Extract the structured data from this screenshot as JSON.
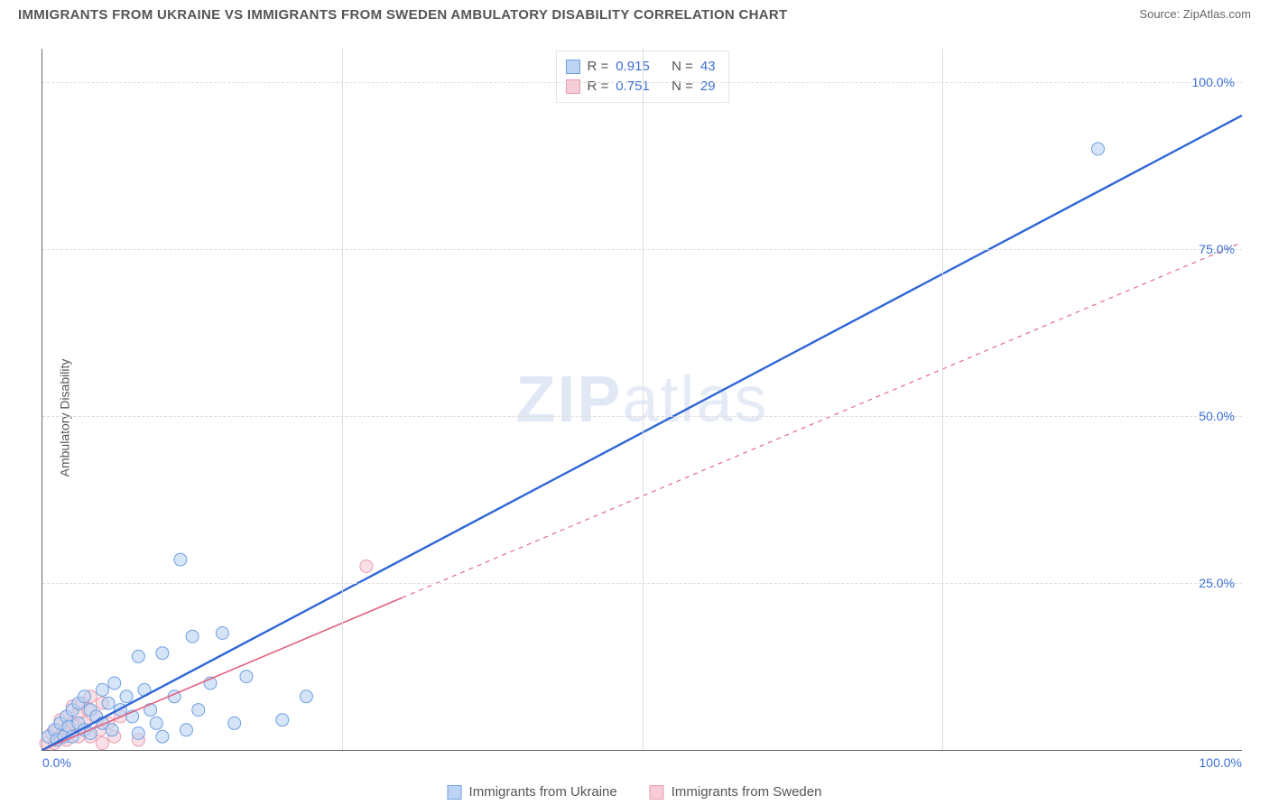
{
  "header": {
    "title": "IMMIGRANTS FROM UKRAINE VS IMMIGRANTS FROM SWEDEN AMBULATORY DISABILITY CORRELATION CHART",
    "source_label": "Source:",
    "source_name": "ZipAtlas.com"
  },
  "chart": {
    "type": "scatter",
    "ylabel": "Ambulatory Disability",
    "watermark_bold": "ZIP",
    "watermark_thin": "atlas",
    "background_color": "#ffffff",
    "grid_color": "#dddddd",
    "axis_color": "#666666",
    "tick_color": "#3b6fd6",
    "xlim": [
      0,
      100
    ],
    "ylim": [
      0,
      105
    ],
    "x_ticks": [
      0,
      100
    ],
    "x_tick_labels": [
      "0.0%",
      "100.0%"
    ],
    "y_ticks": [
      25,
      50,
      75,
      100
    ],
    "y_tick_labels": [
      "25.0%",
      "50.0%",
      "75.0%",
      "100.0%"
    ],
    "x_gridlines": [
      25,
      50,
      75
    ],
    "series": [
      {
        "key": "ukraine",
        "label": "Immigrants from Ukraine",
        "color_fill": "#bcd3f2",
        "color_stroke": "#6f9fe0",
        "line_color": "#2f66d6",
        "line_width": 2.4,
        "line_dash": "none",
        "marker_radius": 7,
        "marker_opacity": 0.62,
        "R": "0.915",
        "N": "43",
        "trend": {
          "x1": 0,
          "y1": 0,
          "x2": 100,
          "y2": 95,
          "solid_until_x": 100
        },
        "points": [
          [
            0.5,
            2.0
          ],
          [
            1.0,
            3.0
          ],
          [
            1.2,
            1.5
          ],
          [
            1.5,
            4.0
          ],
          [
            1.8,
            2.0
          ],
          [
            2.0,
            5.0
          ],
          [
            2.2,
            3.5
          ],
          [
            2.5,
            6.0
          ],
          [
            2.5,
            2.0
          ],
          [
            3.0,
            4.0
          ],
          [
            3.0,
            7.0
          ],
          [
            3.5,
            3.0
          ],
          [
            3.5,
            8.0
          ],
          [
            4.0,
            6.0
          ],
          [
            4.0,
            2.5
          ],
          [
            4.5,
            5.0
          ],
          [
            5.0,
            9.0
          ],
          [
            5.0,
            4.0
          ],
          [
            5.5,
            7.0
          ],
          [
            5.8,
            3.0
          ],
          [
            6.0,
            10.0
          ],
          [
            6.5,
            6.0
          ],
          [
            7.0,
            8.0
          ],
          [
            7.5,
            5.0
          ],
          [
            8.0,
            2.5
          ],
          [
            8.0,
            14.0
          ],
          [
            8.5,
            9.0
          ],
          [
            9.0,
            6.0
          ],
          [
            9.5,
            4.0
          ],
          [
            10.0,
            2.0
          ],
          [
            10.0,
            14.5
          ],
          [
            11.0,
            8.0
          ],
          [
            12.0,
            3.0
          ],
          [
            12.5,
            17.0
          ],
          [
            13.0,
            6.0
          ],
          [
            14.0,
            10.0
          ],
          [
            15.0,
            17.5
          ],
          [
            16.0,
            4.0
          ],
          [
            17.0,
            11.0
          ],
          [
            20.0,
            4.5
          ],
          [
            22.0,
            8.0
          ],
          [
            11.5,
            28.5
          ],
          [
            88.0,
            90.0
          ]
        ]
      },
      {
        "key": "sweden",
        "label": "Immigrants from Sweden",
        "color_fill": "#f6cdd6",
        "color_stroke": "#e89bb0",
        "line_color": "#e2607f",
        "line_width": 1.6,
        "line_dash": "5,5",
        "marker_radius": 7,
        "marker_opacity": 0.62,
        "R": "0.751",
        "N": "29",
        "trend": {
          "x1": 0,
          "y1": 0,
          "x2": 100,
          "y2": 76,
          "solid_until_x": 30
        },
        "points": [
          [
            0.3,
            1.0
          ],
          [
            0.8,
            2.5
          ],
          [
            1.0,
            1.0
          ],
          [
            1.2,
            3.0
          ],
          [
            1.5,
            2.0
          ],
          [
            1.5,
            4.5
          ],
          [
            1.8,
            3.0
          ],
          [
            2.0,
            1.5
          ],
          [
            2.0,
            5.0
          ],
          [
            2.3,
            2.5
          ],
          [
            2.5,
            4.0
          ],
          [
            2.5,
            6.5
          ],
          [
            2.8,
            3.5
          ],
          [
            3.0,
            5.5
          ],
          [
            3.0,
            2.0
          ],
          [
            3.3,
            7.0
          ],
          [
            3.5,
            4.0
          ],
          [
            3.8,
            6.0
          ],
          [
            4.0,
            2.0
          ],
          [
            4.0,
            8.0
          ],
          [
            4.5,
            5.0
          ],
          [
            4.8,
            3.0
          ],
          [
            5.0,
            1.0
          ],
          [
            5.0,
            7.0
          ],
          [
            5.5,
            4.0
          ],
          [
            6.0,
            2.0
          ],
          [
            6.5,
            5.0
          ],
          [
            8.0,
            1.5
          ],
          [
            27.0,
            27.5
          ]
        ]
      }
    ],
    "legend_top": {
      "R_label": "R =",
      "N_label": "N ="
    }
  }
}
